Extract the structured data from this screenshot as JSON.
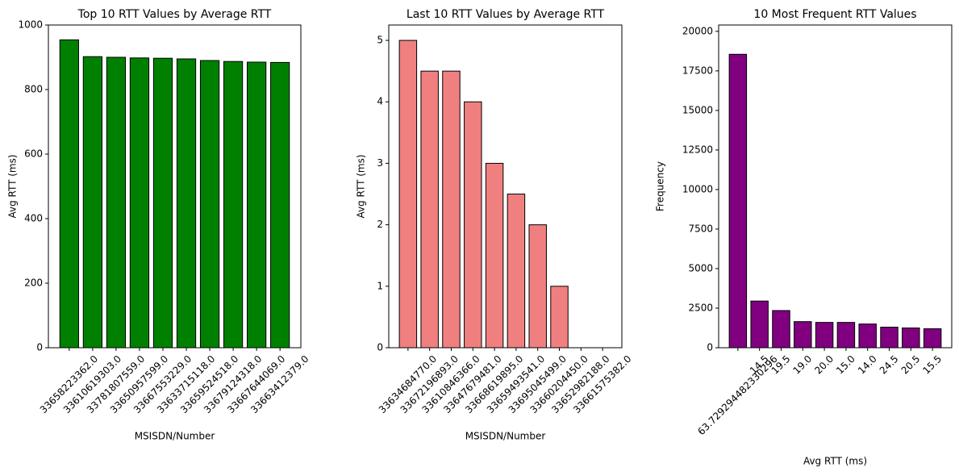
{
  "chart_data": [
    {
      "type": "bar",
      "title": "Top 10 RTT Values by Average RTT",
      "x_label": "MSISDN/Number",
      "y_label": "Avg RTT (ms)",
      "categories": [
        "33658223362.0",
        "33610619303.0",
        "33781807559.0",
        "33650957599.0",
        "33667553229.0",
        "33633715118.0",
        "33659524518.0",
        "33679124318.0",
        "33667644069.0",
        "33663412379.0"
      ],
      "values": [
        954,
        902,
        900,
        898,
        897,
        895,
        890,
        887,
        885,
        884
      ],
      "color": "#008000",
      "edgecolor": "#000000",
      "ylim": [
        0,
        1000
      ],
      "yticks": [
        0,
        200,
        400,
        600,
        800,
        1000
      ]
    },
    {
      "type": "bar",
      "title": "Last 10 RTT Values by Average RTT",
      "x_label": "MSISDN/Number",
      "y_label": "Avg RTT (ms)",
      "categories": [
        "33634684770.0",
        "33672196893.0",
        "33610846366.0",
        "33647679481.0",
        "33668619895.0",
        "33659493541.0",
        "33695045499.0",
        "33660204450.0",
        "33652982188.0",
        "33661575382.0"
      ],
      "values": [
        5,
        4.5,
        4.5,
        4,
        3,
        2.5,
        2,
        1,
        0,
        0
      ],
      "color": "#f08080",
      "edgecolor": "#000000",
      "ylim": [
        0,
        5.25
      ],
      "yticks": [
        0,
        1,
        2,
        3,
        4,
        5
      ]
    },
    {
      "type": "bar",
      "title": "10 Most Frequent RTT Values",
      "x_label": "Avg RTT (ms)",
      "y_label": "Frequency",
      "categories": [
        "63.729294482330296",
        "14.5",
        "19.5",
        "19.0",
        "20.0",
        "15.0",
        "14.0",
        "24.5",
        "20.5",
        "15.5"
      ],
      "values": [
        18550,
        2950,
        2350,
        1650,
        1600,
        1600,
        1500,
        1300,
        1250,
        1200
      ],
      "color": "#800080",
      "edgecolor": "#000000",
      "ylim": [
        0,
        20400
      ],
      "yticks": [
        0,
        2500,
        5000,
        7500,
        10000,
        12500,
        15000,
        17500,
        20000
      ]
    }
  ]
}
